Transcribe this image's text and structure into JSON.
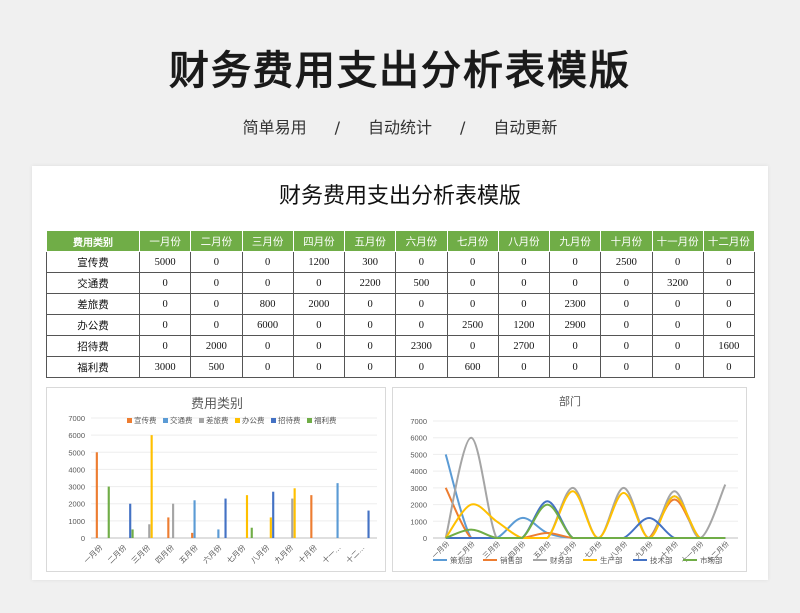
{
  "hero": {
    "title": "财务费用支出分析表模版",
    "tags": [
      "简单易用",
      "/",
      "自动统计",
      "/",
      "自动更新"
    ]
  },
  "sheet": {
    "title": "财务费用支出分析表模版"
  },
  "table": {
    "header": [
      "费用类别",
      "一月份",
      "二月份",
      "三月份",
      "四月份",
      "五月份",
      "六月份",
      "七月份",
      "八月份",
      "九月份",
      "十月份",
      "十一月份",
      "十二月份"
    ],
    "rows": [
      [
        "宣传费",
        "5000",
        "0",
        "0",
        "1200",
        "300",
        "0",
        "0",
        "0",
        "0",
        "2500",
        "0",
        "0"
      ],
      [
        "交通费",
        "0",
        "0",
        "0",
        "0",
        "2200",
        "500",
        "0",
        "0",
        "0",
        "0",
        "3200",
        "0"
      ],
      [
        "差旅费",
        "0",
        "0",
        "800",
        "2000",
        "0",
        "0",
        "0",
        "0",
        "2300",
        "0",
        "0",
        "0"
      ],
      [
        "办公费",
        "0",
        "0",
        "6000",
        "0",
        "0",
        "0",
        "2500",
        "1200",
        "2900",
        "0",
        "0",
        "0"
      ],
      [
        "招待费",
        "0",
        "2000",
        "0",
        "0",
        "0",
        "2300",
        "0",
        "2700",
        "0",
        "0",
        "0",
        "1600"
      ],
      [
        "福利费",
        "3000",
        "500",
        "0",
        "0",
        "0",
        "0",
        "600",
        "0",
        "0",
        "0",
        "0",
        "0"
      ]
    ]
  },
  "chart_data": [
    {
      "type": "bar",
      "title": "费用类别",
      "categories": [
        "一月份",
        "二月份",
        "三月份",
        "四月份",
        "五月份",
        "六月份",
        "七月份",
        "八月份",
        "九月份",
        "十月份",
        "十一月份",
        "十二月份"
      ],
      "x_tick_labels": [
        "一月份",
        "二月份",
        "三月份",
        "四月份",
        "五月份",
        "六月份",
        "七月份",
        "八月份",
        "九月份",
        "十月份",
        "十一…",
        "十二…"
      ],
      "ylim": [
        0,
        7000
      ],
      "yticks": [
        "0",
        "1000",
        "2000",
        "3000",
        "4000",
        "5000",
        "6000",
        "7000"
      ],
      "legend": "top",
      "series": [
        {
          "name": "宣传费",
          "color": "#ed7d31",
          "values": [
            5000,
            0,
            0,
            1200,
            300,
            0,
            0,
            0,
            0,
            2500,
            0,
            0
          ]
        },
        {
          "name": "交通费",
          "color": "#5b9bd5",
          "values": [
            0,
            0,
            0,
            0,
            2200,
            500,
            0,
            0,
            0,
            0,
            3200,
            0
          ]
        },
        {
          "name": "差旅费",
          "color": "#a5a5a5",
          "values": [
            0,
            0,
            800,
            2000,
            0,
            0,
            0,
            0,
            2300,
            0,
            0,
            0
          ]
        },
        {
          "name": "办公费",
          "color": "#ffc000",
          "values": [
            0,
            0,
            6000,
            0,
            0,
            0,
            2500,
            1200,
            2900,
            0,
            0,
            0
          ]
        },
        {
          "name": "招待费",
          "color": "#4472c4",
          "values": [
            0,
            2000,
            0,
            0,
            0,
            2300,
            0,
            2700,
            0,
            0,
            0,
            1600
          ]
        },
        {
          "name": "福利费",
          "color": "#70ad47",
          "values": [
            3000,
            500,
            0,
            0,
            0,
            0,
            600,
            0,
            0,
            0,
            0,
            0
          ]
        }
      ]
    },
    {
      "type": "line",
      "title": "部门",
      "categories": [
        "一月份",
        "二月份",
        "三月份",
        "四月份",
        "五月份",
        "六月份",
        "七月份",
        "八月份",
        "九月份",
        "十月份",
        "十一月份",
        "十二月份"
      ],
      "x_tick_labels": [
        "一月份",
        "二月份",
        "三月份",
        "四月份",
        "五月份",
        "六月份",
        "七月份",
        "八月份",
        "九月份",
        "十月份",
        "十一月份",
        "十二月份"
      ],
      "ylim": [
        0,
        7000
      ],
      "yticks": [
        "0",
        "1000",
        "2000",
        "3000",
        "4000",
        "5000",
        "6000",
        "7000"
      ],
      "legend": "bottom",
      "series": [
        {
          "name": "策划部",
          "color": "#5b9bd5",
          "values": [
            5000,
            0,
            0,
            1200,
            300,
            0,
            0,
            0,
            0,
            2500,
            0,
            0
          ]
        },
        {
          "name": "销售部",
          "color": "#ed7d31",
          "values": [
            3000,
            0,
            0,
            0,
            300,
            0,
            0,
            0,
            0,
            2300,
            0,
            0
          ]
        },
        {
          "name": "财务部",
          "color": "#a5a5a5",
          "values": [
            0,
            6000,
            0,
            0,
            0,
            3000,
            0,
            3000,
            0,
            2800,
            0,
            3200
          ]
        },
        {
          "name": "生产部",
          "color": "#ffc000",
          "values": [
            0,
            2000,
            1000,
            0,
            0,
            2800,
            0,
            2700,
            0,
            2500,
            0,
            0
          ]
        },
        {
          "name": "技术部",
          "color": "#4472c4",
          "values": [
            0,
            0,
            0,
            0,
            2200,
            0,
            0,
            0,
            1200,
            0,
            0,
            0
          ]
        },
        {
          "name": "市场部",
          "color": "#70ad47",
          "values": [
            0,
            500,
            0,
            0,
            2000,
            0,
            0,
            0,
            0,
            0,
            0,
            0
          ]
        }
      ]
    }
  ]
}
